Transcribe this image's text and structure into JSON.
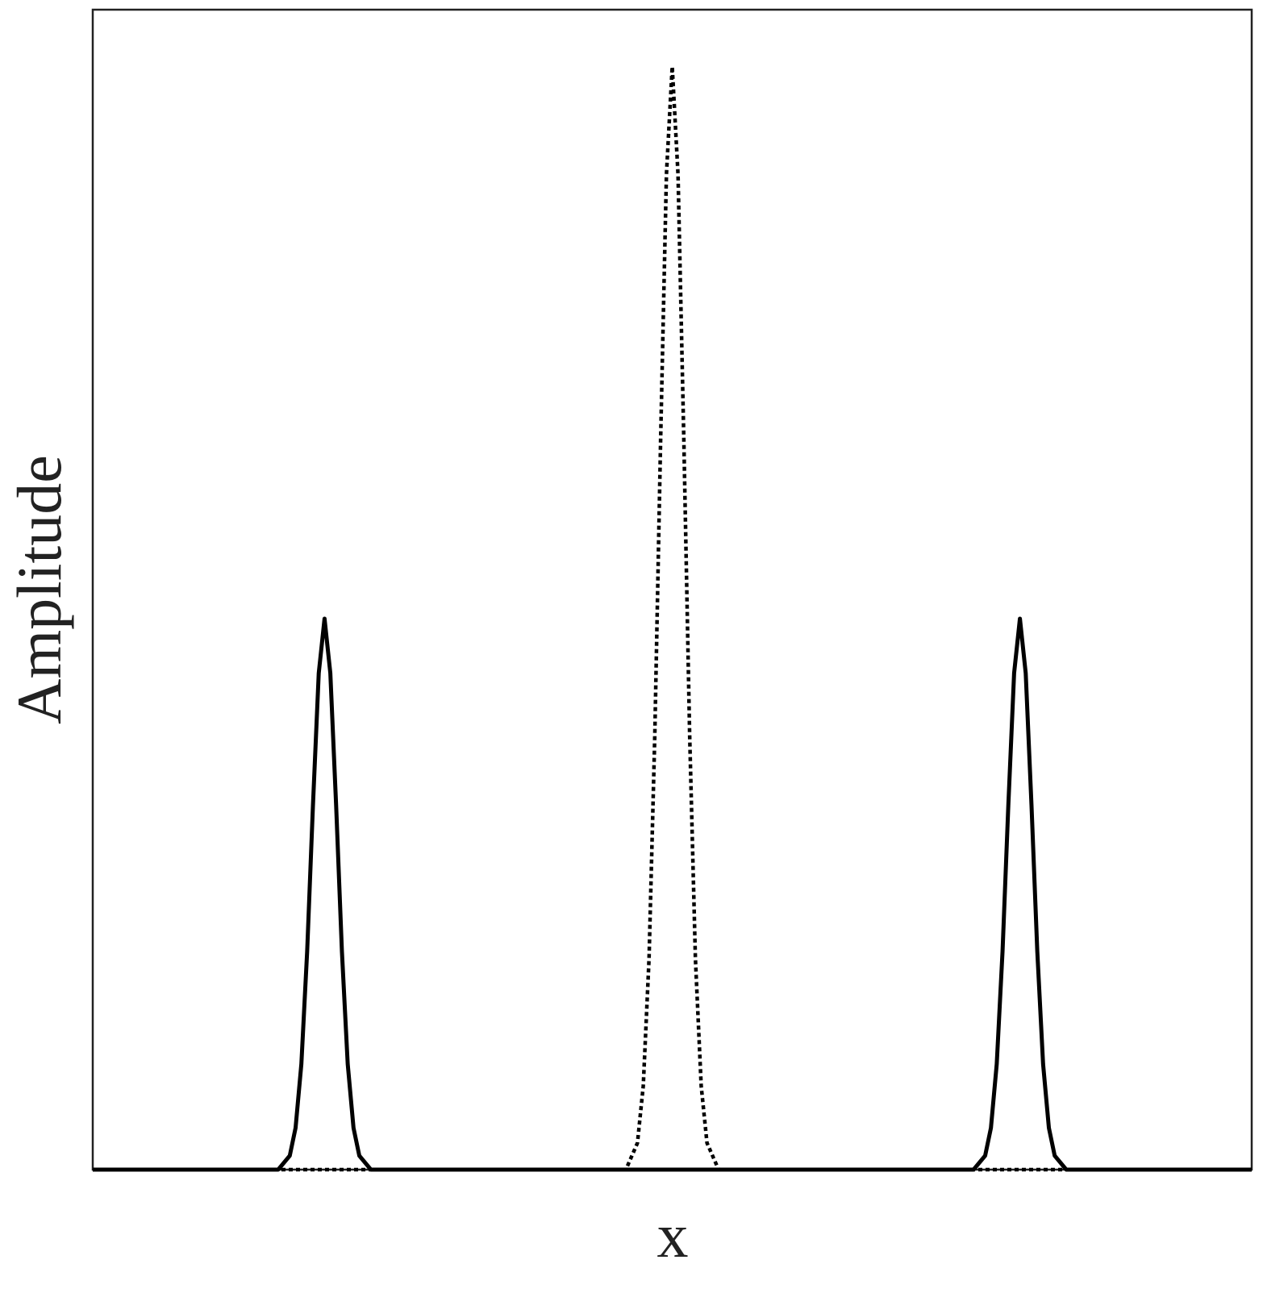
{
  "chart_data": {
    "type": "line",
    "xlabel": "x",
    "ylabel": "Amplitude",
    "xlim": [
      0,
      1
    ],
    "ylim": [
      0,
      1
    ],
    "x": [
      0,
      0.16,
      0.17,
      0.175,
      0.18,
      0.185,
      0.19,
      0.195,
      0.2,
      0.205,
      0.21,
      0.215,
      0.22,
      0.225,
      0.23,
      0.24,
      0.46,
      0.47,
      0.475,
      0.48,
      0.485,
      0.49,
      0.495,
      0.5,
      0.505,
      0.51,
      0.515,
      0.52,
      0.525,
      0.53,
      0.54,
      0.76,
      0.77,
      0.775,
      0.78,
      0.785,
      0.79,
      0.795,
      0.8,
      0.805,
      0.81,
      0.815,
      0.82,
      0.825,
      0.83,
      0.84,
      1
    ],
    "series": [
      {
        "color": "#000000",
        "line_style": "solid",
        "values": [
          0,
          0,
          0.012,
          0.036,
          0.091,
          0.188,
          0.314,
          0.428,
          0.475,
          0.428,
          0.314,
          0.188,
          0.091,
          0.036,
          0.012,
          0,
          0,
          0,
          0,
          0,
          0,
          0,
          0,
          0,
          0,
          0,
          0,
          0,
          0,
          0,
          0,
          0,
          0.012,
          0.036,
          0.091,
          0.188,
          0.314,
          0.428,
          0.475,
          0.428,
          0.314,
          0.188,
          0.091,
          0.036,
          0.012,
          0,
          0
        ]
      },
      {
        "color": "#000000",
        "line_style": "dotted",
        "values": [
          0,
          0,
          0,
          0,
          0,
          0,
          0,
          0,
          0,
          0,
          0,
          0,
          0,
          0,
          0,
          0,
          0,
          0.023,
          0.072,
          0.182,
          0.376,
          0.63,
          0.858,
          0.951,
          0.858,
          0.63,
          0.376,
          0.182,
          0.072,
          0.023,
          0,
          0,
          0,
          0,
          0,
          0,
          0,
          0,
          0,
          0,
          0,
          0,
          0,
          0,
          0,
          0,
          0
        ]
      }
    ]
  }
}
